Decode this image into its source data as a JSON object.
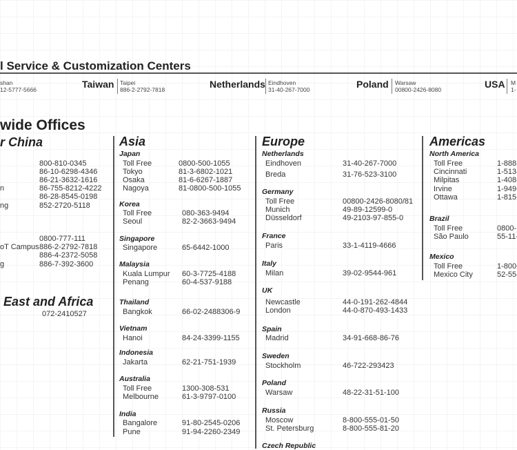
{
  "service_centers": {
    "title": "l Service & Customization Centers",
    "items": [
      {
        "country": "",
        "city": "shan",
        "phone": "12-5777-5666"
      },
      {
        "country": "Taiwan",
        "city": "Taipei",
        "phone": "886-2-2792-7818"
      },
      {
        "country": "Netherlands",
        "city": "Eindhoven",
        "phone": "31-40-267-7000"
      },
      {
        "country": "Poland",
        "city": "Warsaw",
        "phone": "00800-2426-8080"
      },
      {
        "country": "USA",
        "city": "M",
        "phone": "1-"
      }
    ]
  },
  "offices": {
    "title": "wide Offices",
    "regions": [
      {
        "name": "r China",
        "groups": [
          {
            "country": "",
            "rows": [
              [
                "",
                "800-810-0345"
              ],
              [
                "",
                "86-10-6298-4346"
              ],
              [
                "",
                "86-21-3632-1616"
              ],
              [
                "n",
                "86-755-8212-4222"
              ],
              [
                "",
                "86-28-8545-0198"
              ],
              [
                "ng",
                "852-2720-5118"
              ]
            ]
          },
          {
            "country": "",
            "rows": [
              [
                "",
                "0800-777-111"
              ],
              [
                "oT Campus",
                "886-2-2792-7818"
              ],
              [
                "",
                "886-4-2372-5058"
              ],
              [
                "g",
                "886-7-392-3600"
              ]
            ]
          }
        ]
      },
      {
        "name": "East and Africa",
        "groups": [
          {
            "country": "",
            "rows": [
              [
                "",
                "072-2410527"
              ]
            ]
          }
        ]
      },
      {
        "name": "Asia",
        "groups": [
          {
            "country": "Japan",
            "rows": [
              [
                "Toll Free",
                "0800-500-1055"
              ],
              [
                "Tokyo",
                "81-3-6802-1021"
              ],
              [
                "Osaka",
                "81-6-6267-1887"
              ],
              [
                "Nagoya",
                "81-0800-500-1055"
              ]
            ]
          },
          {
            "country": "Korea",
            "rows": [
              [
                "Toll Free",
                "080-363-9494"
              ],
              [
                "Seoul",
                "82-2-3663-9494"
              ]
            ]
          },
          {
            "country": "Singapore",
            "rows": [
              [
                "Singapore",
                "65-6442-1000"
              ]
            ]
          },
          {
            "country": "Malaysia",
            "rows": [
              [
                "Kuala Lumpur",
                "60-3-7725-4188"
              ],
              [
                "Penang",
                "60-4-537-9188"
              ]
            ]
          },
          {
            "country": "Thailand",
            "rows": [
              [
                "Bangkok",
                "66-02-2488306-9"
              ]
            ]
          },
          {
            "country": "Vietnam",
            "rows": [
              [
                "Hanoi",
                "84-24-3399-1155"
              ]
            ]
          },
          {
            "country": "Indonesia",
            "rows": [
              [
                "Jakarta",
                "62-21-751-1939"
              ]
            ]
          },
          {
            "country": "Australia",
            "rows": [
              [
                "Toll Free",
                "1300-308-531"
              ],
              [
                "Melbourne",
                "61-3-9797-0100"
              ]
            ]
          },
          {
            "country": "India",
            "rows": [
              [
                "Bangalore",
                "91-80-2545-0206"
              ],
              [
                "Pune",
                "91-94-2260-2349"
              ]
            ]
          }
        ]
      },
      {
        "name": "Europe",
        "groups": [
          {
            "country": "Netherlands",
            "rows": [
              [
                "Eindhoven",
                "31-40-267-7000"
              ],
              [
                "Breda",
                "31-76-523-3100"
              ]
            ]
          },
          {
            "country": "Germany",
            "rows": [
              [
                "Toll Free",
                "00800-2426-8080/81"
              ],
              [
                "Munich",
                "49-89-12599-0"
              ],
              [
                "Düsseldorf",
                "49-2103-97-855-0"
              ]
            ]
          },
          {
            "country": "France",
            "rows": [
              [
                "Paris",
                "33-1-4119-4666"
              ]
            ]
          },
          {
            "country": "Italy",
            "rows": [
              [
                "Milan",
                "39-02-9544-961"
              ]
            ]
          },
          {
            "country": "UK",
            "rows": [
              [
                "Newcastle",
                "44-0-191-262-4844"
              ],
              [
                "London",
                "44-0-870-493-1433"
              ]
            ]
          },
          {
            "country": "Spain",
            "rows": [
              [
                "Madrid",
                "34-91-668-86-76"
              ]
            ]
          },
          {
            "country": "Sweden",
            "rows": [
              [
                "Stockholm",
                "46-722-293423"
              ]
            ]
          },
          {
            "country": "Poland",
            "rows": [
              [
                "Warsaw",
                "48-22-31-51-100"
              ]
            ]
          },
          {
            "country": "Russia",
            "rows": [
              [
                "Moscow",
                "8-800-555-01-50"
              ],
              [
                "St. Petersburg",
                "8-800-555-81-20"
              ]
            ]
          },
          {
            "country": "Czech Republic",
            "rows": []
          }
        ]
      },
      {
        "name": "Americas",
        "groups": [
          {
            "country": "North America",
            "rows": [
              [
                "Toll Free",
                "1-888-"
              ],
              [
                "Cincinnati",
                "1-513-"
              ],
              [
                "Milpitas",
                "1-408-"
              ],
              [
                "Irvine",
                "1-949-"
              ],
              [
                "Ottawa",
                "1-815-"
              ]
            ]
          },
          {
            "country": "Brazil",
            "rows": [
              [
                "Toll Free",
                "0800-"
              ],
              [
                "São Paulo",
                "55-11-"
              ]
            ]
          },
          {
            "country": "Mexico",
            "rows": [
              [
                "Toll Free",
                "1-800-"
              ],
              [
                "Mexico City",
                "52-55-"
              ]
            ]
          }
        ]
      }
    ]
  }
}
